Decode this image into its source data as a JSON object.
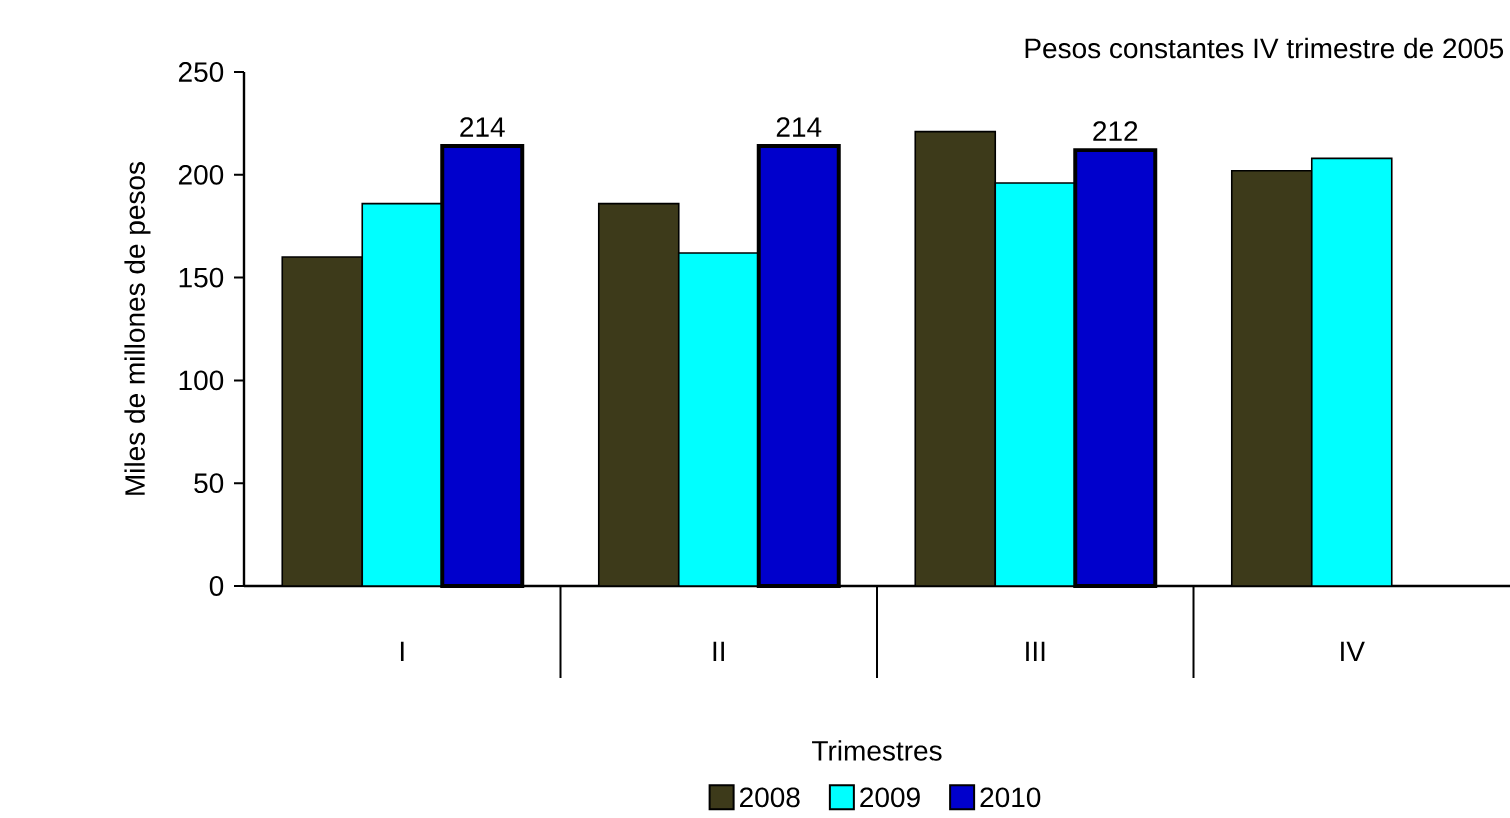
{
  "chart_data": {
    "type": "bar",
    "title": "Pesos constantes IV trimestre de 2005",
    "xlabel": "Trimestres",
    "ylabel": "Miles de millones de pesos",
    "categories": [
      "I",
      "II",
      "III",
      "IV"
    ],
    "series": [
      {
        "name": "2008",
        "color": "#3d3a1a",
        "values": [
          160,
          186,
          221,
          202
        ]
      },
      {
        "name": "2009",
        "color": "#00ffff",
        "values": [
          186,
          162,
          196,
          208
        ]
      },
      {
        "name": "2010",
        "color": "#0000cc",
        "values": [
          214,
          214,
          212,
          null
        ],
        "value_labels": [
          "214",
          "214",
          "212",
          null
        ]
      }
    ],
    "ylim": [
      0,
      250
    ],
    "yticks": [
      0,
      50,
      100,
      150,
      200,
      250
    ],
    "grid": false,
    "legend": "bottom"
  }
}
